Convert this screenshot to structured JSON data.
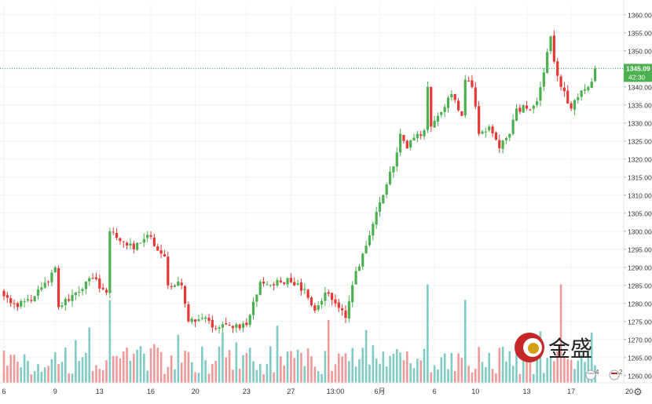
{
  "chart_data": {
    "type": "candlestick",
    "price_axis": {
      "ticks": [
        1260,
        1265,
        1270,
        1275,
        1280,
        1285,
        1290,
        1295,
        1300,
        1305,
        1310,
        1315,
        1320,
        1325,
        1330,
        1335,
        1340,
        1345,
        1350,
        1355,
        1360
      ],
      "tick_labels": [
        "1260.00",
        "1265.00",
        "1270.00",
        "1275.00",
        "1280.00",
        "1285.00",
        "1290.00",
        "1295.00",
        "1300.00",
        "1305.00",
        "1310.00",
        "1315.00",
        "1320.00",
        "1325.00",
        "1330.00",
        "1335.00",
        "1340.00",
        "1345.00",
        "1350.00",
        "1355.00",
        "1360.00"
      ],
      "range": [
        1258.0,
        1363.0
      ]
    },
    "time_axis": {
      "labels": [
        {
          "text": "6",
          "bar": 0
        },
        {
          "text": "9",
          "bar": 15
        },
        {
          "text": "13",
          "bar": 28
        },
        {
          "text": "16",
          "bar": 43
        },
        {
          "text": "20",
          "bar": 56
        },
        {
          "text": "23",
          "bar": 71
        },
        {
          "text": "27",
          "bar": 84
        },
        {
          "text": "13:00",
          "bar": 97
        },
        {
          "text": "6月",
          "bar": 110
        },
        {
          "text": "6",
          "bar": 126
        },
        {
          "text": "10",
          "bar": 138
        },
        {
          "text": "13",
          "bar": 153
        },
        {
          "text": "17",
          "bar": 166
        },
        {
          "text": "20",
          "bar": 183
        }
      ]
    },
    "current_price": {
      "value": 1345.09,
      "label": "1345.09",
      "countdown": "42:30",
      "color": "#4caf50"
    },
    "up_color": "#4caf50",
    "down_color": "#e53935",
    "volume_up_color": "#80cbc4",
    "volume_down_color": "#ef9a9a",
    "bar_count": 174,
    "events": [
      {
        "label": "4"
      },
      {
        "label": "2"
      }
    ],
    "watermark": {
      "text": "金盛"
    },
    "close_anchors": [
      {
        "bar": 0,
        "close": 1282
      },
      {
        "bar": 4,
        "close": 1279
      },
      {
        "bar": 9,
        "close": 1282
      },
      {
        "bar": 13,
        "close": 1286
      },
      {
        "bar": 15,
        "close": 1290
      },
      {
        "bar": 16,
        "close": 1279
      },
      {
        "bar": 21,
        "close": 1283
      },
      {
        "bar": 26,
        "close": 1287
      },
      {
        "bar": 30,
        "close": 1283
      },
      {
        "bar": 31,
        "close": 1300
      },
      {
        "bar": 35,
        "close": 1297
      },
      {
        "bar": 38,
        "close": 1295
      },
      {
        "bar": 42,
        "close": 1299
      },
      {
        "bar": 47,
        "close": 1293
      },
      {
        "bar": 48,
        "close": 1285
      },
      {
        "bar": 52,
        "close": 1285
      },
      {
        "bar": 54,
        "close": 1275
      },
      {
        "bar": 58,
        "close": 1276
      },
      {
        "bar": 62,
        "close": 1273
      },
      {
        "bar": 66,
        "close": 1274
      },
      {
        "bar": 71,
        "close": 1274
      },
      {
        "bar": 75,
        "close": 1286
      },
      {
        "bar": 79,
        "close": 1285
      },
      {
        "bar": 83,
        "close": 1287
      },
      {
        "bar": 88,
        "close": 1284
      },
      {
        "bar": 91,
        "close": 1278
      },
      {
        "bar": 94,
        "close": 1283
      },
      {
        "bar": 97,
        "close": 1280
      },
      {
        "bar": 100,
        "close": 1276
      },
      {
        "bar": 103,
        "close": 1289
      },
      {
        "bar": 106,
        "close": 1296
      },
      {
        "bar": 110,
        "close": 1308
      },
      {
        "bar": 114,
        "close": 1318
      },
      {
        "bar": 116,
        "close": 1327
      },
      {
        "bar": 118,
        "close": 1323
      },
      {
        "bar": 121,
        "close": 1327
      },
      {
        "bar": 123,
        "close": 1328
      },
      {
        "bar": 124,
        "close": 1340
      },
      {
        "bar": 125,
        "close": 1329
      },
      {
        "bar": 128,
        "close": 1333
      },
      {
        "bar": 131,
        "close": 1338
      },
      {
        "bar": 134,
        "close": 1332
      },
      {
        "bar": 135,
        "close": 1342
      },
      {
        "bar": 137,
        "close": 1340
      },
      {
        "bar": 139,
        "close": 1327
      },
      {
        "bar": 142,
        "close": 1329
      },
      {
        "bar": 145,
        "close": 1323
      },
      {
        "bar": 148,
        "close": 1327
      },
      {
        "bar": 150,
        "close": 1334
      },
      {
        "bar": 153,
        "close": 1334
      },
      {
        "bar": 156,
        "close": 1336
      },
      {
        "bar": 158,
        "close": 1344
      },
      {
        "bar": 160,
        "close": 1354
      },
      {
        "bar": 161,
        "close": 1347
      },
      {
        "bar": 163,
        "close": 1340
      },
      {
        "bar": 166,
        "close": 1334
      },
      {
        "bar": 169,
        "close": 1339
      },
      {
        "bar": 171,
        "close": 1340
      },
      {
        "bar": 173,
        "close": 1345.09
      }
    ]
  }
}
